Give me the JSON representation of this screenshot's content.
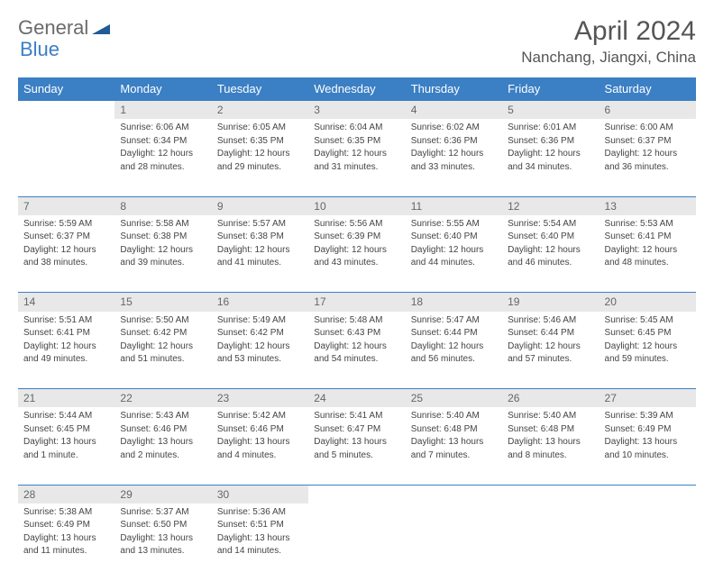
{
  "logo": {
    "text1": "General",
    "text2": "Blue"
  },
  "title": "April 2024",
  "location": "Nanchang, Jiangxi, China",
  "colors": {
    "header_bg": "#3b7fc4",
    "header_text": "#ffffff",
    "daynum_bg": "#e8e8e8",
    "border": "#3b7fc4",
    "text": "#444444"
  },
  "weekdays": [
    "Sunday",
    "Monday",
    "Tuesday",
    "Wednesday",
    "Thursday",
    "Friday",
    "Saturday"
  ],
  "weeks": [
    [
      null,
      {
        "n": "1",
        "sr": "Sunrise: 6:06 AM",
        "ss": "Sunset: 6:34 PM",
        "d1": "Daylight: 12 hours",
        "d2": "and 28 minutes."
      },
      {
        "n": "2",
        "sr": "Sunrise: 6:05 AM",
        "ss": "Sunset: 6:35 PM",
        "d1": "Daylight: 12 hours",
        "d2": "and 29 minutes."
      },
      {
        "n": "3",
        "sr": "Sunrise: 6:04 AM",
        "ss": "Sunset: 6:35 PM",
        "d1": "Daylight: 12 hours",
        "d2": "and 31 minutes."
      },
      {
        "n": "4",
        "sr": "Sunrise: 6:02 AM",
        "ss": "Sunset: 6:36 PM",
        "d1": "Daylight: 12 hours",
        "d2": "and 33 minutes."
      },
      {
        "n": "5",
        "sr": "Sunrise: 6:01 AM",
        "ss": "Sunset: 6:36 PM",
        "d1": "Daylight: 12 hours",
        "d2": "and 34 minutes."
      },
      {
        "n": "6",
        "sr": "Sunrise: 6:00 AM",
        "ss": "Sunset: 6:37 PM",
        "d1": "Daylight: 12 hours",
        "d2": "and 36 minutes."
      }
    ],
    [
      {
        "n": "7",
        "sr": "Sunrise: 5:59 AM",
        "ss": "Sunset: 6:37 PM",
        "d1": "Daylight: 12 hours",
        "d2": "and 38 minutes."
      },
      {
        "n": "8",
        "sr": "Sunrise: 5:58 AM",
        "ss": "Sunset: 6:38 PM",
        "d1": "Daylight: 12 hours",
        "d2": "and 39 minutes."
      },
      {
        "n": "9",
        "sr": "Sunrise: 5:57 AM",
        "ss": "Sunset: 6:38 PM",
        "d1": "Daylight: 12 hours",
        "d2": "and 41 minutes."
      },
      {
        "n": "10",
        "sr": "Sunrise: 5:56 AM",
        "ss": "Sunset: 6:39 PM",
        "d1": "Daylight: 12 hours",
        "d2": "and 43 minutes."
      },
      {
        "n": "11",
        "sr": "Sunrise: 5:55 AM",
        "ss": "Sunset: 6:40 PM",
        "d1": "Daylight: 12 hours",
        "d2": "and 44 minutes."
      },
      {
        "n": "12",
        "sr": "Sunrise: 5:54 AM",
        "ss": "Sunset: 6:40 PM",
        "d1": "Daylight: 12 hours",
        "d2": "and 46 minutes."
      },
      {
        "n": "13",
        "sr": "Sunrise: 5:53 AM",
        "ss": "Sunset: 6:41 PM",
        "d1": "Daylight: 12 hours",
        "d2": "and 48 minutes."
      }
    ],
    [
      {
        "n": "14",
        "sr": "Sunrise: 5:51 AM",
        "ss": "Sunset: 6:41 PM",
        "d1": "Daylight: 12 hours",
        "d2": "and 49 minutes."
      },
      {
        "n": "15",
        "sr": "Sunrise: 5:50 AM",
        "ss": "Sunset: 6:42 PM",
        "d1": "Daylight: 12 hours",
        "d2": "and 51 minutes."
      },
      {
        "n": "16",
        "sr": "Sunrise: 5:49 AM",
        "ss": "Sunset: 6:42 PM",
        "d1": "Daylight: 12 hours",
        "d2": "and 53 minutes."
      },
      {
        "n": "17",
        "sr": "Sunrise: 5:48 AM",
        "ss": "Sunset: 6:43 PM",
        "d1": "Daylight: 12 hours",
        "d2": "and 54 minutes."
      },
      {
        "n": "18",
        "sr": "Sunrise: 5:47 AM",
        "ss": "Sunset: 6:44 PM",
        "d1": "Daylight: 12 hours",
        "d2": "and 56 minutes."
      },
      {
        "n": "19",
        "sr": "Sunrise: 5:46 AM",
        "ss": "Sunset: 6:44 PM",
        "d1": "Daylight: 12 hours",
        "d2": "and 57 minutes."
      },
      {
        "n": "20",
        "sr": "Sunrise: 5:45 AM",
        "ss": "Sunset: 6:45 PM",
        "d1": "Daylight: 12 hours",
        "d2": "and 59 minutes."
      }
    ],
    [
      {
        "n": "21",
        "sr": "Sunrise: 5:44 AM",
        "ss": "Sunset: 6:45 PM",
        "d1": "Daylight: 13 hours",
        "d2": "and 1 minute."
      },
      {
        "n": "22",
        "sr": "Sunrise: 5:43 AM",
        "ss": "Sunset: 6:46 PM",
        "d1": "Daylight: 13 hours",
        "d2": "and 2 minutes."
      },
      {
        "n": "23",
        "sr": "Sunrise: 5:42 AM",
        "ss": "Sunset: 6:46 PM",
        "d1": "Daylight: 13 hours",
        "d2": "and 4 minutes."
      },
      {
        "n": "24",
        "sr": "Sunrise: 5:41 AM",
        "ss": "Sunset: 6:47 PM",
        "d1": "Daylight: 13 hours",
        "d2": "and 5 minutes."
      },
      {
        "n": "25",
        "sr": "Sunrise: 5:40 AM",
        "ss": "Sunset: 6:48 PM",
        "d1": "Daylight: 13 hours",
        "d2": "and 7 minutes."
      },
      {
        "n": "26",
        "sr": "Sunrise: 5:40 AM",
        "ss": "Sunset: 6:48 PM",
        "d1": "Daylight: 13 hours",
        "d2": "and 8 minutes."
      },
      {
        "n": "27",
        "sr": "Sunrise: 5:39 AM",
        "ss": "Sunset: 6:49 PM",
        "d1": "Daylight: 13 hours",
        "d2": "and 10 minutes."
      }
    ],
    [
      {
        "n": "28",
        "sr": "Sunrise: 5:38 AM",
        "ss": "Sunset: 6:49 PM",
        "d1": "Daylight: 13 hours",
        "d2": "and 11 minutes."
      },
      {
        "n": "29",
        "sr": "Sunrise: 5:37 AM",
        "ss": "Sunset: 6:50 PM",
        "d1": "Daylight: 13 hours",
        "d2": "and 13 minutes."
      },
      {
        "n": "30",
        "sr": "Sunrise: 5:36 AM",
        "ss": "Sunset: 6:51 PM",
        "d1": "Daylight: 13 hours",
        "d2": "and 14 minutes."
      },
      null,
      null,
      null,
      null
    ]
  ]
}
